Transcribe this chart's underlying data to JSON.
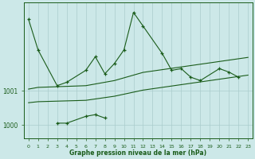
{
  "background_color": "#cce8e8",
  "grid_color": "#aacccc",
  "line_color": "#1a5c1a",
  "text_color": "#1a5c1a",
  "xlabel": "Graphe pression niveau de la mer (hPa)",
  "xlim": [
    -0.5,
    23.5
  ],
  "ylim": [
    999.6,
    1003.6
  ],
  "yticks": [
    1000,
    1001
  ],
  "xticks": [
    0,
    1,
    2,
    3,
    4,
    5,
    6,
    7,
    8,
    9,
    10,
    11,
    12,
    13,
    14,
    15,
    16,
    17,
    18,
    19,
    20,
    21,
    22,
    23
  ],
  "line1_x": [
    0,
    1,
    3,
    4,
    6,
    7,
    8,
    9,
    10,
    11,
    12,
    14,
    15,
    16,
    17,
    18,
    20,
    21,
    22
  ],
  "line1_y": [
    1003.1,
    1002.2,
    1001.15,
    1001.25,
    1001.6,
    1002.0,
    1001.5,
    1001.8,
    1002.2,
    1003.3,
    1002.9,
    1002.1,
    1001.6,
    1001.65,
    1001.4,
    1001.3,
    1001.65,
    1001.55,
    1001.4
  ],
  "line2_x": [
    3,
    4,
    6,
    7,
    8
  ],
  "line2_y": [
    1000.05,
    1000.05,
    1000.25,
    1000.3,
    1000.2
  ],
  "line3_x": [
    0,
    1,
    6,
    7,
    8,
    9,
    10,
    11,
    12,
    13,
    14,
    15,
    16,
    17,
    18,
    19,
    20,
    21,
    22,
    23
  ],
  "line3_y": [
    1001.05,
    1001.1,
    1001.15,
    1001.2,
    1001.25,
    1001.3,
    1001.38,
    1001.46,
    1001.54,
    1001.58,
    1001.62,
    1001.66,
    1001.7,
    1001.74,
    1001.78,
    1001.82,
    1001.86,
    1001.9,
    1001.94,
    1001.98
  ],
  "line4_x": [
    0,
    1,
    6,
    7,
    8,
    9,
    10,
    11,
    12,
    13,
    14,
    15,
    16,
    17,
    18,
    19,
    20,
    21,
    22,
    23
  ],
  "line4_y": [
    1000.65,
    1000.68,
    1000.72,
    1000.76,
    1000.8,
    1000.84,
    1000.9,
    1000.96,
    1001.02,
    1001.06,
    1001.1,
    1001.14,
    1001.18,
    1001.22,
    1001.26,
    1001.3,
    1001.34,
    1001.38,
    1001.42,
    1001.46
  ]
}
